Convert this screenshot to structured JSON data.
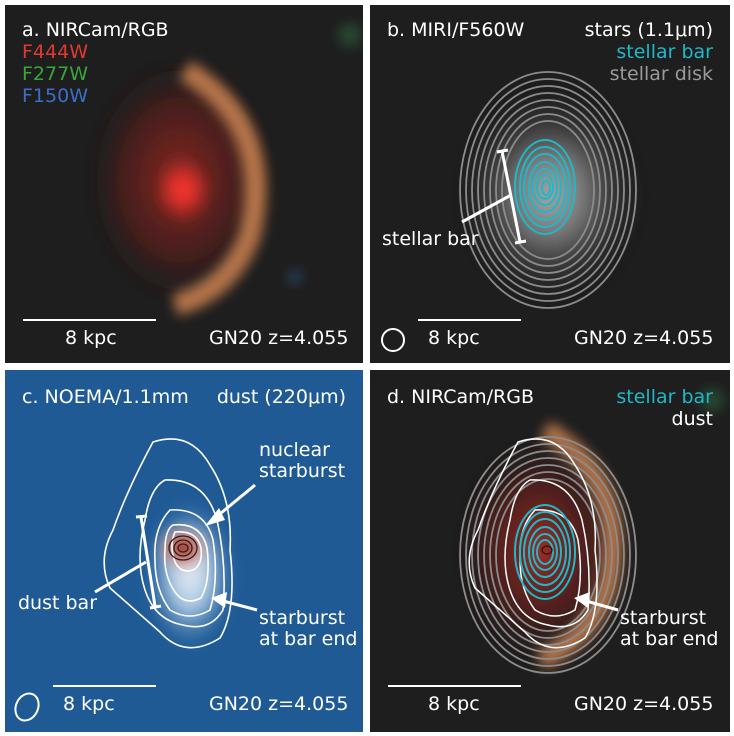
{
  "panels": {
    "a": {
      "title": "a. NIRCam/RGB",
      "filters": [
        {
          "label": "F444W",
          "color": "#e03a30"
        },
        {
          "label": "F277W",
          "color": "#3aa63a"
        },
        {
          "label": "F150W",
          "color": "#3a6ec8"
        }
      ],
      "scale": "8 kpc",
      "galaxy": "GN20 z=4.055"
    },
    "b": {
      "title": "b. MIRI/F560W",
      "legend": [
        {
          "text": "stars (1.1μm)",
          "color": "#ffffff"
        },
        {
          "text": "stellar bar",
          "color": "#1fb8c8"
        },
        {
          "text": "stellar disk",
          "color": "#9a9a9a"
        }
      ],
      "annotation": "stellar bar",
      "scale": "8 kpc",
      "galaxy": "GN20 z=4.055"
    },
    "c": {
      "title": "c. NOEMA/1.1mm",
      "legend": "dust (220μm)",
      "annotations": {
        "nuclear_line1": "nuclear",
        "nuclear_line2": "starburst",
        "dust_bar": "dust bar",
        "barend_line1": "starburst",
        "barend_line2": "at bar end"
      },
      "scale": "8 kpc",
      "galaxy": "GN20 z=4.055"
    },
    "d": {
      "title": "d. NIRCam/RGB",
      "legend": [
        {
          "text": "stellar bar",
          "color": "#1fb8c8"
        },
        {
          "text": "dust",
          "color": "#ffffff"
        }
      ],
      "annotations": {
        "barend_line1": "starburst",
        "barend_line2": "at bar end"
      },
      "scale": "8 kpc",
      "galaxy": "GN20 z=4.055"
    }
  }
}
